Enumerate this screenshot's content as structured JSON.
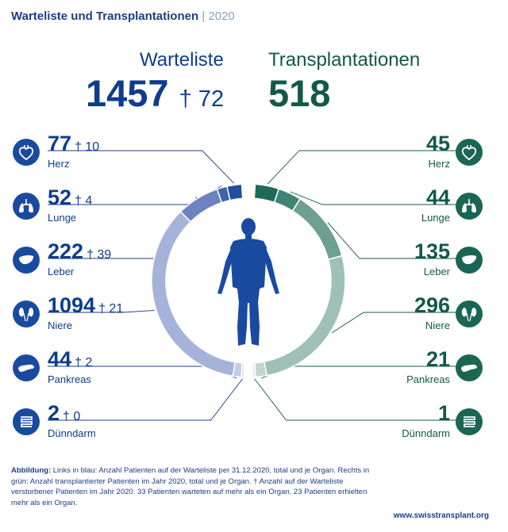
{
  "header": {
    "title": "Warteliste und Transplantationen",
    "separator": "|",
    "year": "2020"
  },
  "summary": {
    "waitlist_label": "Warteliste",
    "waitlist_total": "1457",
    "waitlist_deaths": "† 72",
    "transplant_label": "Transplantationen",
    "transplant_total": "518"
  },
  "chart_data": {
    "type": "donut",
    "title": "Warteliste und Transplantationen 2020",
    "categories": [
      "Herz",
      "Lunge",
      "Leber",
      "Niere",
      "Pankreas",
      "Dünndarm"
    ],
    "series": [
      {
        "name": "Warteliste",
        "values": [
          77,
          52,
          222,
          1094,
          44,
          2
        ],
        "deaths": [
          10,
          4,
          39,
          21,
          2,
          0
        ],
        "total": 1457,
        "total_deaths": 72
      },
      {
        "name": "Transplantationen",
        "values": [
          45,
          44,
          135,
          296,
          21,
          1
        ],
        "total": 518
      }
    ],
    "colors": {
      "waitlist": [
        "#1f4f9e",
        "#3d63a8",
        "#6d83bf",
        "#a5b2d9",
        "#c4cce3",
        "#e0e4ee"
      ],
      "transplant": [
        "#1d6a58",
        "#3f8375",
        "#6e9f93",
        "#9ec0b8",
        "#c1d5d1",
        "#dde8e6"
      ]
    }
  },
  "left": [
    {
      "value": "77",
      "death": "† 10",
      "label": "Herz",
      "icon": "heart-icon"
    },
    {
      "value": "52",
      "death": "† 4",
      "label": "Lunge",
      "icon": "lungs-icon"
    },
    {
      "value": "222",
      "death": "† 39",
      "label": "Leber",
      "icon": "liver-icon"
    },
    {
      "value": "1094",
      "death": "† 21",
      "label": "Niere",
      "icon": "kidney-icon"
    },
    {
      "value": "44",
      "death": "† 2",
      "label": "Pankreas",
      "icon": "pancreas-icon"
    },
    {
      "value": "2",
      "death": "† 0",
      "label": "Dünndarm",
      "icon": "intestine-icon"
    }
  ],
  "right": [
    {
      "value": "45",
      "label": "Herz",
      "icon": "heart-icon"
    },
    {
      "value": "44",
      "label": "Lunge",
      "icon": "lungs-icon"
    },
    {
      "value": "135",
      "label": "Leber",
      "icon": "liver-icon"
    },
    {
      "value": "296",
      "label": "Niere",
      "icon": "kidney-icon"
    },
    {
      "value": "21",
      "label": "Pankreas",
      "icon": "pancreas-icon"
    },
    {
      "value": "1",
      "label": "Dünndarm",
      "icon": "intestine-icon"
    }
  ],
  "caption": {
    "bold": "Abbildung:",
    "text": "Links in blau: Anzahl Patienten auf der Warteliste per 31.12.2020, total und je Organ. Rechts in grün: Anzahl transplantierter Patienten im Jahr 2020, total und je Organ. † Anzahl auf der Warteliste verstorbener Patienten im Jahr 2020. 33 Patienten warteten auf mehr als ein Organ. 23 Patienten erhielten mehr als ein Organ."
  },
  "footer": {
    "url": "www.swisstransplant.org"
  }
}
